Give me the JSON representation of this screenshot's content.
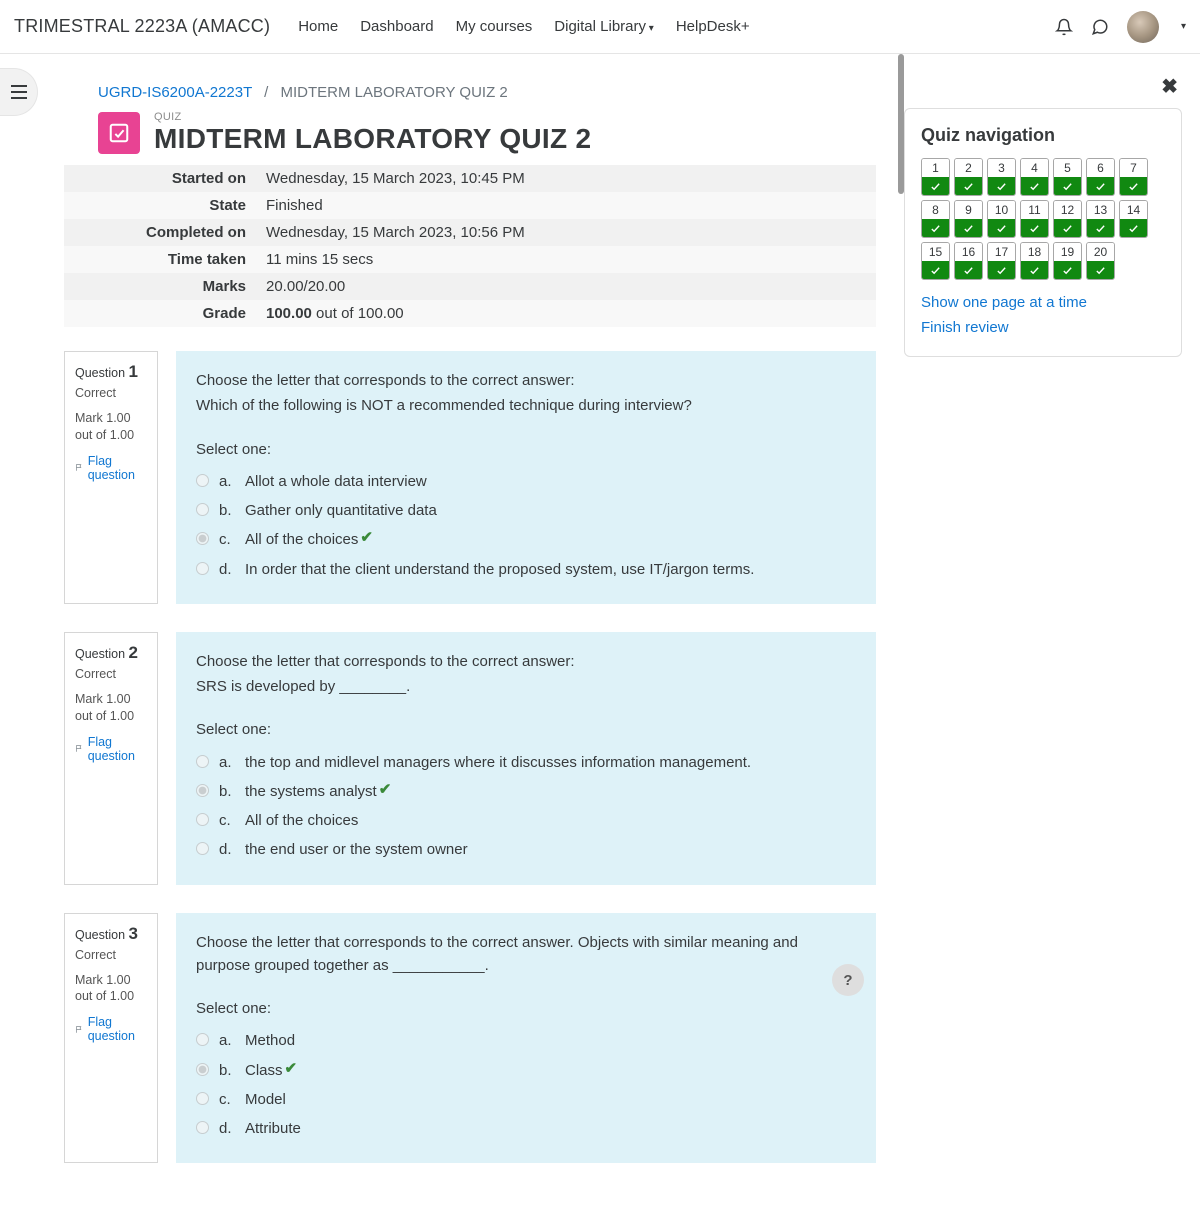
{
  "nav": {
    "brand": "TRIMESTRAL 2223A (AMACC)",
    "links": [
      "Home",
      "Dashboard",
      "My courses",
      "Digital Library",
      "HelpDesk+"
    ],
    "dropdown_index": 3
  },
  "breadcrumb": {
    "course": "UGRD-IS6200A-2223T",
    "current": "MIDTERM LABORATORY QUIZ 2"
  },
  "heading": {
    "type_label": "QUIZ",
    "title": "MIDTERM LABORATORY QUIZ 2",
    "icon_bg": "#e84393"
  },
  "summary": {
    "rows": [
      {
        "label": "Started on",
        "value": "Wednesday, 15 March 2023, 10:45 PM"
      },
      {
        "label": "State",
        "value": "Finished"
      },
      {
        "label": "Completed on",
        "value": "Wednesday, 15 March 2023, 10:56 PM"
      },
      {
        "label": "Time taken",
        "value": "11 mins 15 secs"
      },
      {
        "label": "Marks",
        "value": "20.00/20.00"
      },
      {
        "label": "Grade",
        "value_html": "<b>100.00</b> out of 100.00"
      }
    ]
  },
  "question_info_common": {
    "state": "Correct",
    "mark": "Mark 1.00 out of 1.00",
    "flag": "Flag question"
  },
  "questions": [
    {
      "number": "1",
      "prompt1": "Choose the letter that corresponds to the correct answer:",
      "prompt2": "Which of the following is NOT a recommended technique during interview?",
      "select_label": "Select one:",
      "answers": [
        {
          "letter": "a.",
          "text": "Allot a whole data interview",
          "checked": false,
          "correct": false
        },
        {
          "letter": "b.",
          "text": "Gather only quantitative data",
          "checked": false,
          "correct": false
        },
        {
          "letter": "c.",
          "text": "All of the choices",
          "checked": true,
          "correct": true
        },
        {
          "letter": "d.",
          "text": "In order that the client understand the proposed system, use IT/jargon terms.",
          "checked": false,
          "correct": false
        }
      ]
    },
    {
      "number": "2",
      "prompt1": "Choose the letter that corresponds to the correct answer:",
      "prompt2": "SRS is developed by ________.",
      "select_label": "Select one:",
      "answers": [
        {
          "letter": "a.",
          "text": "the top and midlevel managers where it discusses information management.",
          "checked": false,
          "correct": false
        },
        {
          "letter": "b.",
          "text": "the systems analyst",
          "checked": true,
          "correct": true
        },
        {
          "letter": "c.",
          "text": "All of the choices",
          "checked": false,
          "correct": false
        },
        {
          "letter": "d.",
          "text": "the end user or the system owner",
          "checked": false,
          "correct": false
        }
      ]
    },
    {
      "number": "3",
      "prompt1": "Choose the letter that corresponds to the correct answer. Objects with similar meaning and purpose grouped together as ___________.",
      "prompt2": "",
      "select_label": "Select one:",
      "answers": [
        {
          "letter": "a.",
          "text": "Method",
          "checked": false,
          "correct": false
        },
        {
          "letter": "b.",
          "text": "Class",
          "checked": true,
          "correct": true
        },
        {
          "letter": "c.",
          "text": "Model",
          "checked": false,
          "correct": false
        },
        {
          "letter": "d.",
          "text": "Attribute",
          "checked": false,
          "correct": false
        }
      ]
    }
  ],
  "quiznav": {
    "title": "Quiz navigation",
    "count": 20,
    "link1": "Show one page at a time",
    "link2": "Finish review",
    "correct_color": "#118911"
  },
  "content_bg": "#def2f8",
  "help_label": "?"
}
